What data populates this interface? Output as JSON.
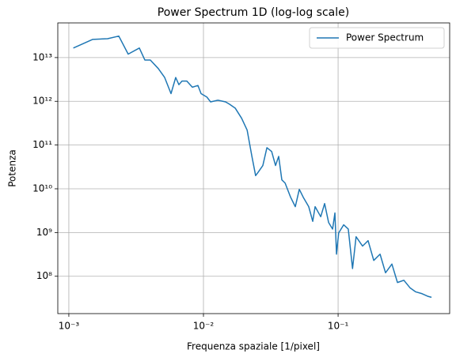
{
  "chart_data": {
    "type": "line",
    "title": "Power Spectrum 1D (log-log scale)",
    "xlabel": "Frequenza spaziale [1/pixel]",
    "ylabel": "Potenza",
    "xscale": "log",
    "yscale": "log",
    "grid": true,
    "legend": "upper right",
    "xlim": [
      0.000828,
      0.674
    ],
    "ylim": [
      14000000,
      62000000000000
    ],
    "xticks": [
      {
        "value": 0.001,
        "label": "10⁻³"
      },
      {
        "value": 0.01,
        "label": "10⁻²"
      },
      {
        "value": 0.1,
        "label": "10⁻¹"
      }
    ],
    "yticks": [
      {
        "value": 100000000,
        "label": "10⁸"
      },
      {
        "value": 1000000000,
        "label": "10⁹"
      },
      {
        "value": 10000000000,
        "label": "10¹⁰"
      },
      {
        "value": 100000000000,
        "label": "10¹¹"
      },
      {
        "value": 1000000000000,
        "label": "10¹²"
      },
      {
        "value": 10000000000000,
        "label": "10¹³"
      }
    ],
    "x": [
      0.00108,
      0.0015,
      0.00194,
      0.00235,
      0.00276,
      0.00334,
      0.00367,
      0.00403,
      0.00462,
      0.00515,
      0.00574,
      0.00622,
      0.00657,
      0.00693,
      0.00752,
      0.00827,
      0.0091,
      0.0096,
      0.0106,
      0.0113,
      0.0128,
      0.0146,
      0.0156,
      0.0172,
      0.0192,
      0.0211,
      0.0229,
      0.0244,
      0.0255,
      0.0276,
      0.0296,
      0.0321,
      0.0343,
      0.0362,
      0.0382,
      0.0404,
      0.0444,
      0.0481,
      0.0515,
      0.0551,
      0.0605,
      0.0648,
      0.0675,
      0.0743,
      0.0794,
      0.085,
      0.091,
      0.0947,
      0.0973,
      0.101,
      0.11,
      0.119,
      0.128,
      0.136,
      0.152,
      0.167,
      0.184,
      0.205,
      0.225,
      0.251,
      0.276,
      0.308,
      0.343,
      0.377,
      0.42,
      0.462,
      0.494
    ],
    "series": [
      {
        "name": "Power Spectrum",
        "color": "#1f77b4",
        "values": [
          16500000000000,
          26000000000000,
          27000000000000,
          31000000000000,
          12000000000000,
          16500000000000,
          8800000000000,
          8800000000000,
          5600000000000,
          3500000000000,
          1500000000000,
          3500000000000,
          2400000000000,
          2900000000000,
          2900000000000,
          2100000000000,
          2300000000000,
          1500000000000,
          1250000000000,
          970000000000,
          1060000000000,
          970000000000,
          860000000000,
          700000000000,
          410000000000,
          220000000000,
          55000000000,
          20000000000,
          24000000000,
          34000000000,
          87000000000,
          71000000000,
          34000000000,
          55000000000,
          16000000000,
          13500000000,
          6400000000,
          3900000000,
          9700000000,
          6400000000,
          3900000000,
          1800000000,
          3900000000,
          2300000000,
          4600000000,
          1700000000,
          1200000000,
          2800000000,
          320000000,
          980000000,
          1500000000,
          1200000000,
          150000000,
          800000000,
          490000000,
          650000000,
          230000000,
          320000000,
          120000000,
          190000000,
          72000000,
          81000000,
          54000000,
          44000000,
          40000000,
          35000000,
          33000000
        ]
      }
    ]
  }
}
